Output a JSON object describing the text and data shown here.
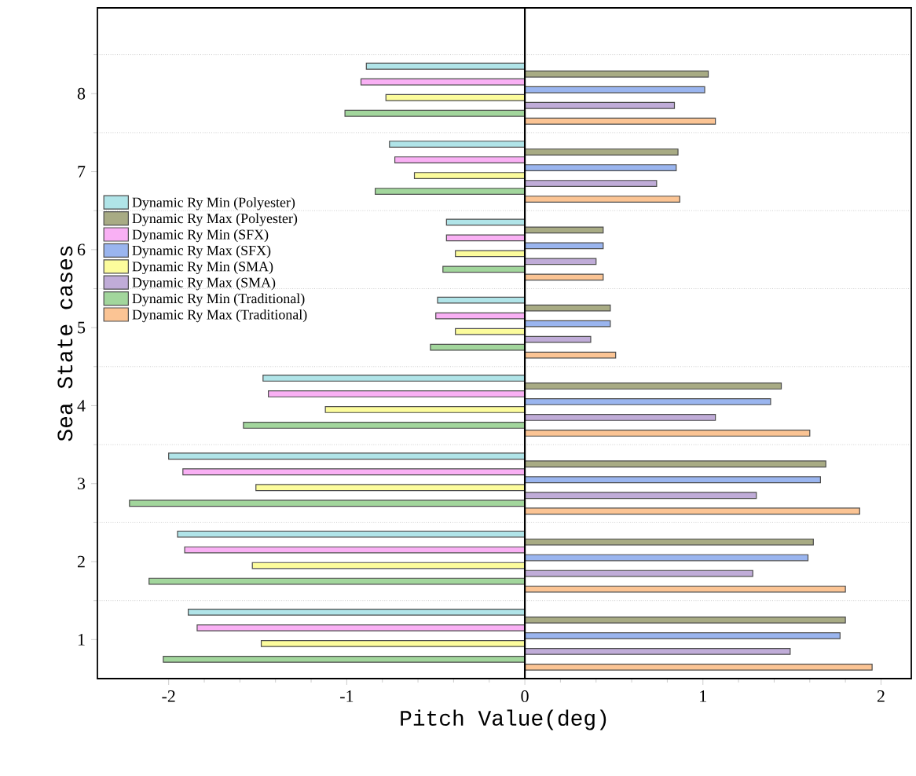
{
  "chart_data": {
    "type": "bar",
    "orientation": "horizontal",
    "xlabel": "Pitch Value(deg)",
    "ylabel": "Sea State cases",
    "categories": [
      "8",
      "7",
      "6",
      "5",
      "4",
      "3",
      "2",
      "1"
    ],
    "xlim": [
      -2.4,
      2.17
    ],
    "xticks": [
      -2,
      -1,
      0,
      1,
      2
    ],
    "grid": "y",
    "legend": "left",
    "ref_lines": [
      {
        "axis": "x",
        "value": 0
      }
    ],
    "series": [
      {
        "name": "Dynamic Ry Min (Polyester)",
        "color": "#b0e4e8",
        "values": [
          -0.89,
          -0.76,
          -0.44,
          -0.49,
          -1.47,
          -2.0,
          -1.95,
          -1.89
        ]
      },
      {
        "name": "Dynamic Ry Max (Polyester)",
        "color": "#a8ab84",
        "values": [
          1.03,
          0.86,
          0.44,
          0.48,
          1.44,
          1.69,
          1.62,
          1.8
        ]
      },
      {
        "name": "Dynamic Ry Min (SFX)",
        "color": "#f9b0f4",
        "values": [
          -0.92,
          -0.73,
          -0.44,
          -0.5,
          -1.44,
          -1.92,
          -1.91,
          -1.84
        ]
      },
      {
        "name": "Dynamic Ry Max (SFX)",
        "color": "#9ab5ef",
        "values": [
          1.01,
          0.85,
          0.44,
          0.48,
          1.38,
          1.66,
          1.59,
          1.77
        ]
      },
      {
        "name": "Dynamic Ry Min (SMA)",
        "color": "#fcfc9c",
        "values": [
          -0.78,
          -0.62,
          -0.39,
          -0.39,
          -1.12,
          -1.51,
          -1.53,
          -1.48
        ]
      },
      {
        "name": "Dynamic Ry Max (SMA)",
        "color": "#c0acd8",
        "values": [
          0.84,
          0.74,
          0.4,
          0.37,
          1.07,
          1.3,
          1.28,
          1.49
        ]
      },
      {
        "name": "Dynamic Ry Min  (Traditional)",
        "color": "#a2d69c",
        "values": [
          -1.01,
          -0.84,
          -0.46,
          -0.53,
          -1.58,
          -2.22,
          -2.11,
          -2.03
        ]
      },
      {
        "name": "Dynamic Ry Max  (Traditional)",
        "color": "#fbc494",
        "values": [
          1.07,
          0.87,
          0.44,
          0.51,
          1.6,
          1.88,
          1.8,
          1.95
        ]
      }
    ]
  }
}
